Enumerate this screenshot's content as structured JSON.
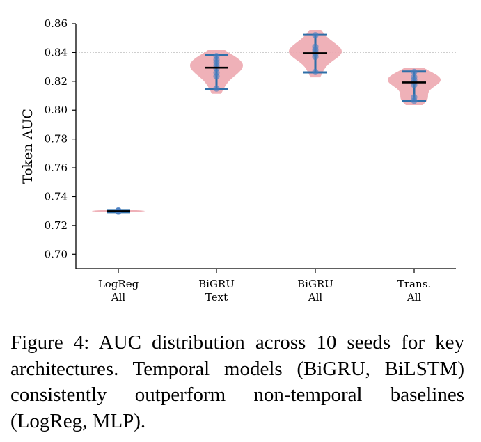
{
  "chart_data": {
    "type": "violin",
    "ylabel": "Token AUC",
    "ylim": [
      0.69,
      0.86
    ],
    "yticks": [
      0.7,
      0.72,
      0.74,
      0.76,
      0.78,
      0.8,
      0.82,
      0.84,
      0.86
    ],
    "ytick_labels": [
      "0.70",
      "0.72",
      "0.74",
      "0.76",
      "0.78",
      "0.80",
      "0.82",
      "0.84",
      "0.86"
    ],
    "reference_line": 0.84,
    "categories": [
      {
        "line1": "LogReg",
        "line2": "All"
      },
      {
        "line1": "BiGRU",
        "line2": "Text"
      },
      {
        "line1": "BiGRU",
        "line2": "All"
      },
      {
        "line1": "Trans.",
        "line2": "All"
      }
    ],
    "groups": [
      {
        "min": 0.7292,
        "max": 0.7306,
        "median": 0.7299,
        "points": [
          0.7295,
          0.7298,
          0.73,
          0.7302,
          0.7304
        ]
      },
      {
        "min": 0.8145,
        "max": 0.8385,
        "median": 0.8295,
        "points": [
          0.815,
          0.8235,
          0.826,
          0.829,
          0.831,
          0.833,
          0.835,
          0.8375
        ]
      },
      {
        "min": 0.8262,
        "max": 0.8522,
        "median": 0.8395,
        "points": [
          0.8265,
          0.837,
          0.839,
          0.8405,
          0.842,
          0.844,
          0.852
        ]
      },
      {
        "min": 0.8062,
        "max": 0.8268,
        "median": 0.8192,
        "points": [
          0.8065,
          0.809,
          0.8175,
          0.8195,
          0.821,
          0.823,
          0.8265
        ]
      }
    ],
    "colors": {
      "violin": "#eda8b0",
      "whisker": "#2f6fa8",
      "point": "#4a7ec2",
      "median": "#000000",
      "refline": "#c8c8c8"
    }
  },
  "caption": "Figure 4: AUC distribution across 10 seeds for key architectures. Temporal models (BiGRU, BiLSTM) consistently outperform non-temporal baselines (LogReg, MLP)."
}
